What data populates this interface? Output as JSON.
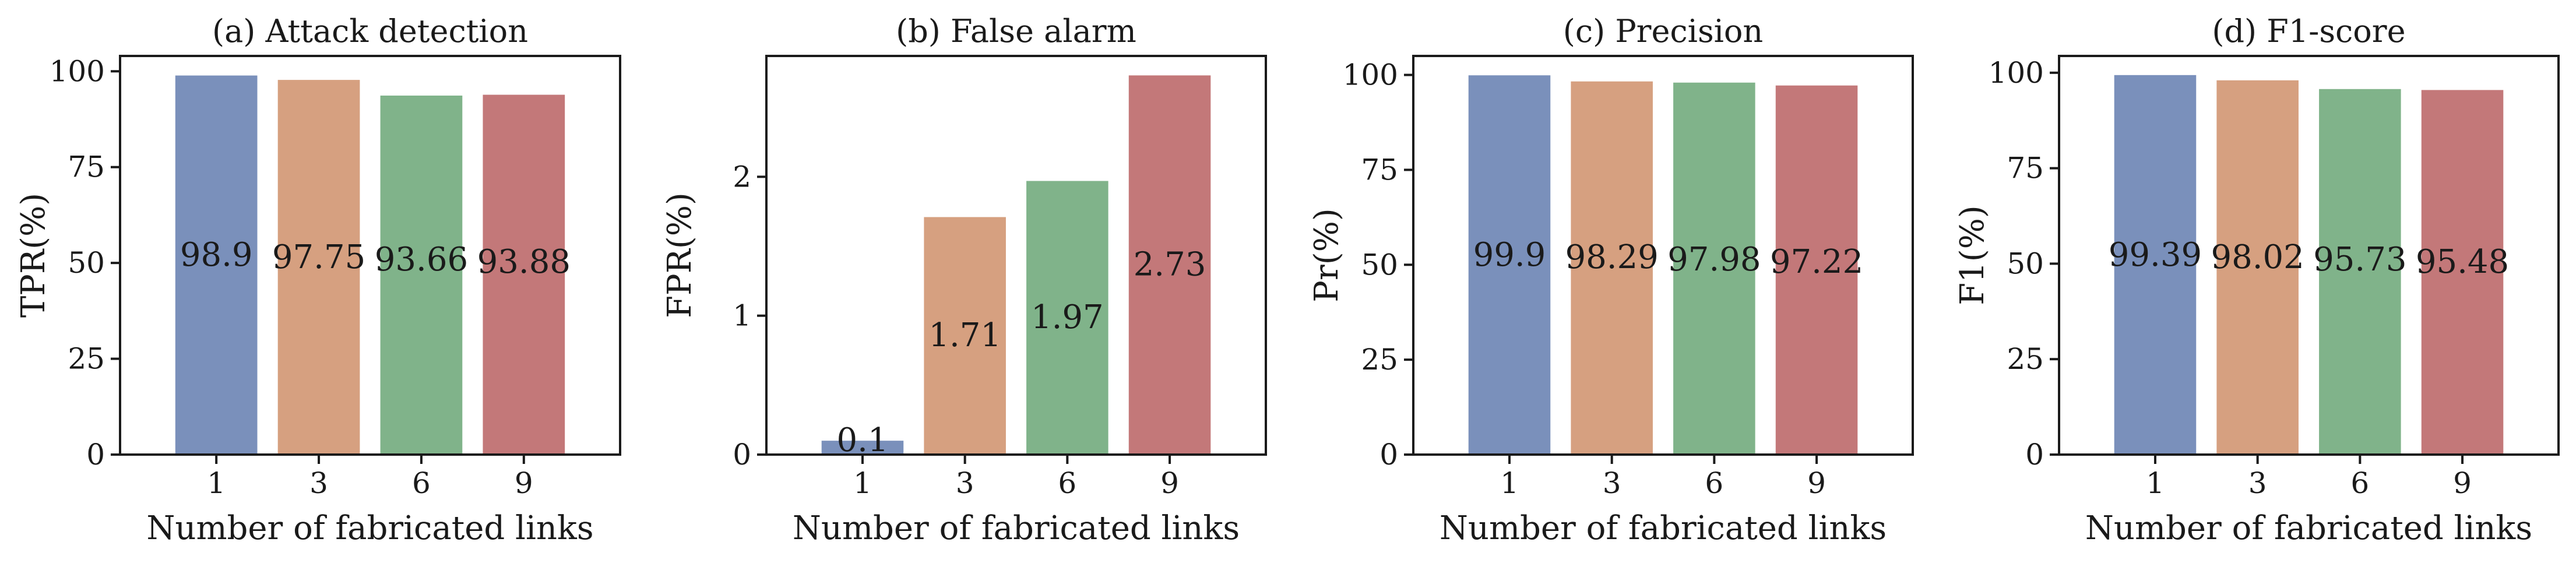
{
  "chart_data": [
    {
      "type": "bar",
      "title": "(a) Attack detection",
      "xlabel": "Number of fabricated links",
      "ylabel": "TPR(%)",
      "categories": [
        "1",
        "3",
        "6",
        "9"
      ],
      "values": [
        98.9,
        97.75,
        93.66,
        93.88
      ],
      "value_labels": [
        "98.9",
        "97.75",
        "93.66",
        "93.88"
      ],
      "ylim": [
        0,
        104
      ],
      "yticks": [
        "0",
        "25",
        "50",
        "75",
        "100"
      ],
      "colors": [
        "#7a90bb",
        "#d6a080",
        "#80b38a",
        "#c37879"
      ]
    },
    {
      "type": "bar",
      "title": "(b) False alarm",
      "xlabel": "Number of fabricated links",
      "ylabel": "FPR(%)",
      "categories": [
        "1",
        "3",
        "6",
        "9"
      ],
      "values": [
        0.1,
        1.71,
        1.97,
        2.73
      ],
      "value_labels": [
        "0.1",
        "1.71",
        "1.97",
        "2.73"
      ],
      "ylim": [
        0,
        2.87
      ],
      "yticks": [
        "0",
        "1",
        "2"
      ],
      "colors": [
        "#7a90bb",
        "#d6a080",
        "#80b38a",
        "#c37879"
      ]
    },
    {
      "type": "bar",
      "title": "(c) Precision",
      "xlabel": "Number of fabricated links",
      "ylabel": "Pr(%)",
      "categories": [
        "1",
        "3",
        "6",
        "9"
      ],
      "values": [
        99.9,
        98.29,
        97.98,
        97.22
      ],
      "value_labels": [
        "99.9",
        "98.29",
        "97.98",
        "97.22"
      ],
      "ylim": [
        0,
        105
      ],
      "yticks": [
        "0",
        "25",
        "50",
        "75",
        "100"
      ],
      "colors": [
        "#7a90bb",
        "#d6a080",
        "#80b38a",
        "#c37879"
      ]
    },
    {
      "type": "bar",
      "title": "(d) F1-score",
      "xlabel": "Number of fabricated links",
      "ylabel": "F1(%)",
      "categories": [
        "1",
        "3",
        "6",
        "9"
      ],
      "values": [
        99.39,
        98.02,
        95.73,
        95.48
      ],
      "value_labels": [
        "99.39",
        "98.02",
        "95.73",
        "95.48"
      ],
      "ylim": [
        0,
        104.4
      ],
      "yticks": [
        "0",
        "25",
        "50",
        "75",
        "100"
      ],
      "colors": [
        "#7a90bb",
        "#d6a080",
        "#80b38a",
        "#c37879"
      ]
    }
  ]
}
